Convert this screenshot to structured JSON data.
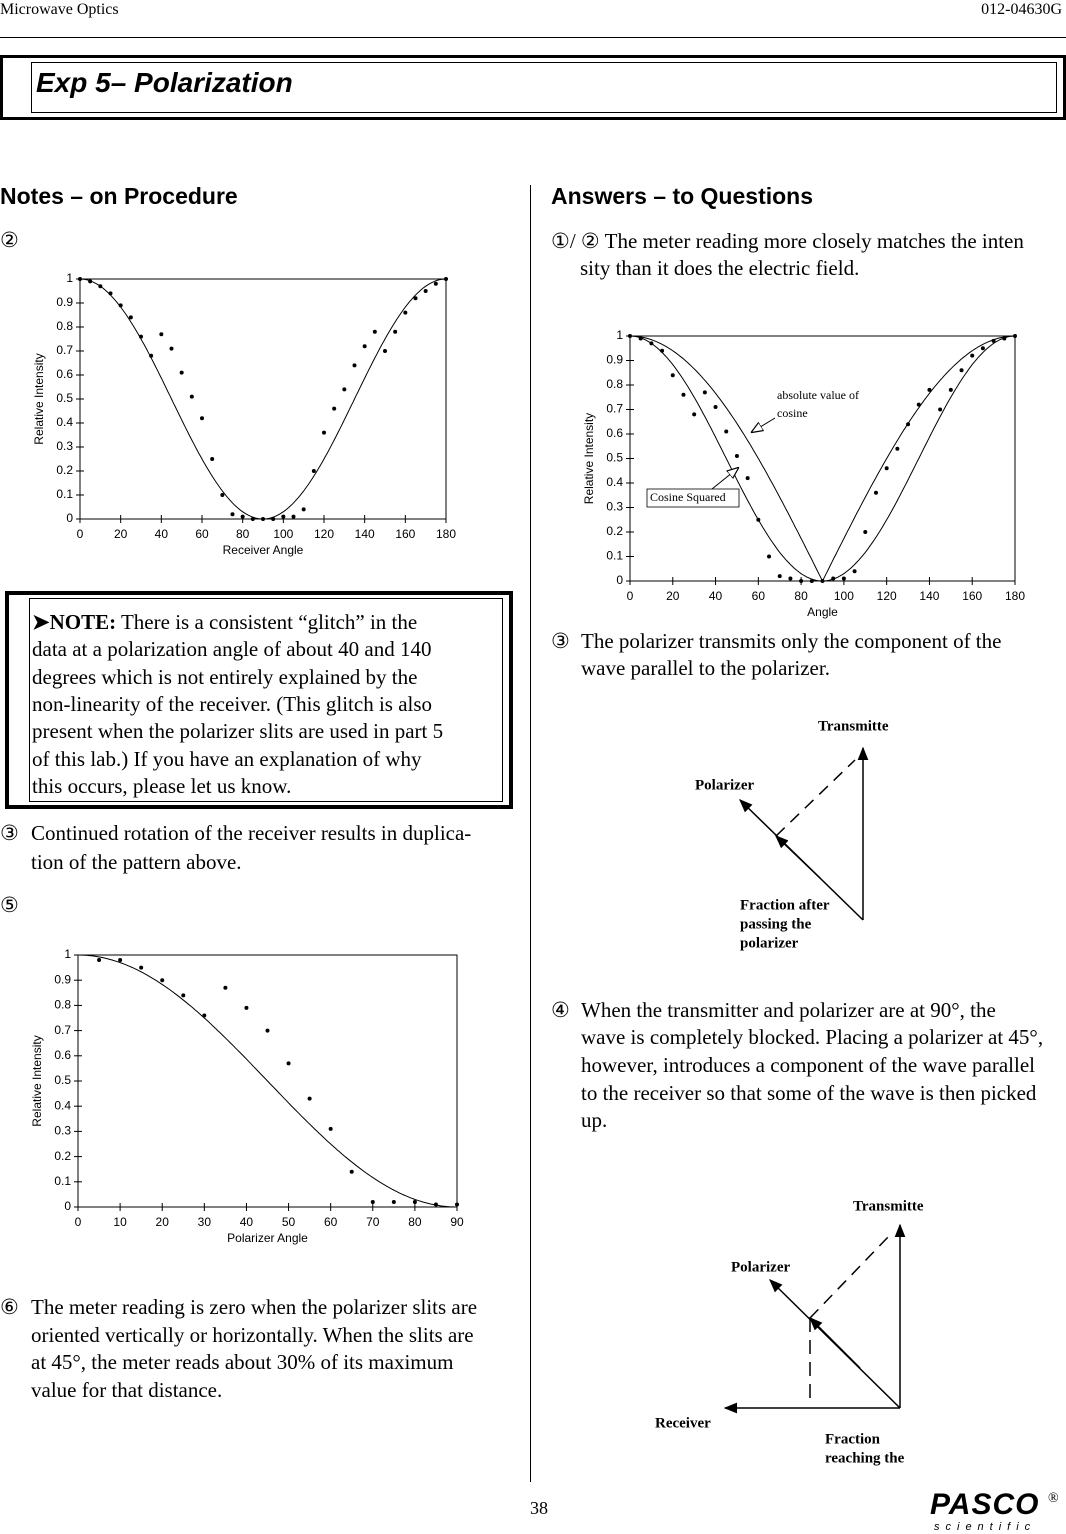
{
  "header": {
    "left": "Microwave Optics",
    "right": "012-04630G"
  },
  "title": "Exp 5– Polarization",
  "notes": {
    "heading": "Notes – on Procedure",
    "items": [
      {
        "marker": "②",
        "lines": []
      },
      {
        "marker": "③",
        "lines": [
          "Continued rotation of the receiver results in duplica-",
          "tion of the pattern above."
        ]
      },
      {
        "marker": "⑤",
        "lines": []
      },
      {
        "marker": "⑥",
        "lines": [
          "The meter reading is zero when the polarizer slits are",
          "oriented vertically or horizontally. When the slits are",
          "at 45°, the meter reads about 30% of its maximum",
          "value for that distance."
        ]
      }
    ],
    "note": {
      "lead": "➤NOTE:",
      "lines": [
        " There is a consistent “glitch” in the",
        "data at a polarization angle of about 40 and 140",
        "degrees which is not entirely explained by the",
        "non-linearity of the receiver. (This glitch is also",
        "present when the polarizer slits are used in part 5",
        "of this lab.) If you have an explanation of why",
        "this occurs, please let us know."
      ]
    }
  },
  "answers": {
    "heading": "Answers – to Questions",
    "items": [
      {
        "marker": "①/ ②",
        "lines": [
          "The meter reading more closely matches the inten",
          "sity than it does the electric field."
        ]
      },
      {
        "marker": "③",
        "lines": [
          "The polarizer transmits only the component of the",
          "wave parallel to the polarizer."
        ]
      },
      {
        "marker": "④",
        "lines": [
          "When the transmitter and polarizer are at 90°, the",
          "wave is completely blocked. Placing a polarizer at 45°,",
          "however, introduces a component of the wave parallel",
          "to the receiver so that some of the wave is then picked",
          "up."
        ]
      }
    ]
  },
  "chart_data": [
    {
      "type": "scatter",
      "xlabel": "Receiver Angle",
      "ylabel": "Relative Intensity",
      "xlim": [
        0,
        180
      ],
      "ylim": [
        0,
        1
      ],
      "xticks": [
        0,
        20,
        40,
        60,
        80,
        100,
        120,
        140,
        160,
        180
      ],
      "yticks": [
        0,
        0.1,
        0.2,
        0.3,
        0.4,
        0.5,
        0.6,
        0.7,
        0.8,
        0.9,
        1
      ],
      "x": [
        0,
        5,
        10,
        15,
        20,
        25,
        30,
        35,
        40,
        45,
        50,
        55,
        60,
        65,
        70,
        75,
        80,
        85,
        90,
        95,
        100,
        105,
        110,
        115,
        120,
        125,
        130,
        135,
        140,
        145,
        150,
        155,
        160,
        165,
        170,
        175,
        180
      ],
      "values": [
        1,
        0.99,
        0.97,
        0.94,
        0.89,
        0.84,
        0.76,
        0.68,
        0.77,
        0.71,
        0.61,
        0.51,
        0.42,
        0.25,
        0.1,
        0.02,
        0.01,
        0,
        0,
        0,
        0.01,
        0.01,
        0.04,
        0.2,
        0.36,
        0.46,
        0.54,
        0.64,
        0.72,
        0.78,
        0.7,
        0.78,
        0.86,
        0.92,
        0.95,
        0.98,
        1
      ],
      "curves": [
        {
          "function": "cos2"
        }
      ]
    },
    {
      "type": "scatter",
      "xlabel": "Angle",
      "ylabel": "Relative Intensity",
      "xlim": [
        0,
        180
      ],
      "ylim": [
        0,
        1
      ],
      "xticks": [
        0,
        20,
        40,
        60,
        80,
        100,
        120,
        140,
        160,
        180
      ],
      "yticks": [
        0,
        0.1,
        0.2,
        0.3,
        0.4,
        0.5,
        0.6,
        0.7,
        0.8,
        0.9,
        1
      ],
      "x": [
        0,
        5,
        10,
        15,
        20,
        25,
        30,
        35,
        40,
        45,
        50,
        55,
        60,
        65,
        70,
        75,
        80,
        85,
        90,
        95,
        100,
        105,
        110,
        115,
        120,
        125,
        130,
        135,
        140,
        145,
        150,
        155,
        160,
        165,
        170,
        175,
        180
      ],
      "values": [
        1,
        0.99,
        0.97,
        0.94,
        0.84,
        0.76,
        0.68,
        0.77,
        0.71,
        0.61,
        0.51,
        0.42,
        0.25,
        0.1,
        0.02,
        0.01,
        0,
        0,
        0,
        0.01,
        0.01,
        0.04,
        0.2,
        0.36,
        0.46,
        0.54,
        0.64,
        0.72,
        0.78,
        0.7,
        0.78,
        0.86,
        0.92,
        0.95,
        0.98,
        0.99,
        1
      ],
      "curves": [
        {
          "label": [
            "absolute value of",
            "cosine"
          ],
          "function": "abscos"
        },
        {
          "label": [
            "Cosine Squared"
          ],
          "function": "cos2"
        }
      ]
    },
    {
      "type": "scatter",
      "xlabel": "Polarizer Angle",
      "ylabel": "Relative Intensity",
      "xlim": [
        0,
        90
      ],
      "ylim": [
        0,
        1
      ],
      "xticks": [
        0,
        10,
        20,
        30,
        40,
        50,
        60,
        70,
        80,
        90
      ],
      "yticks": [
        0,
        0.1,
        0.2,
        0.3,
        0.4,
        0.5,
        0.6,
        0.7,
        0.8,
        0.9,
        1
      ],
      "x": [
        5,
        10,
        15,
        20,
        25,
        30,
        35,
        40,
        45,
        50,
        55,
        60,
        65,
        70,
        75,
        80,
        85,
        90
      ],
      "values": [
        0.98,
        0.98,
        0.95,
        0.9,
        0.84,
        0.76,
        0.87,
        0.79,
        0.7,
        0.57,
        0.43,
        0.31,
        0.14,
        0.02,
        0.02,
        0.02,
        0.01,
        0.01
      ],
      "curves": [
        {
          "function": "cos2"
        }
      ]
    }
  ],
  "diagrams": [
    {
      "labels": [
        "Transmitte",
        "Polarizer",
        "Fraction after",
        "passing the",
        "polarizer"
      ]
    },
    {
      "labels": [
        "Transmitte",
        "Polarizer",
        "Receiver",
        "Fraction",
        "reaching the"
      ]
    }
  ],
  "footer": {
    "page": "38",
    "logo": "PASCO",
    "logo_sub": "scientific",
    "mark": "®"
  }
}
